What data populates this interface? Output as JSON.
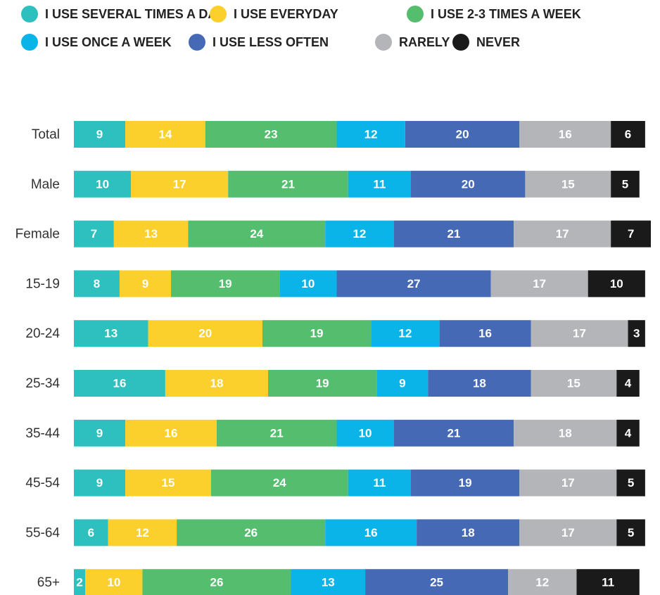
{
  "chart_data": {
    "type": "stacked_bar_horizontal",
    "categories": [
      "Total",
      "Male",
      "Female",
      "15-19",
      "20-24",
      "25-34",
      "35-44",
      "45-54",
      "55-64",
      "65+"
    ],
    "series": [
      {
        "name": "I USE SEVERAL TIMES A DAY",
        "color": "#2ebfbf",
        "values": [
          9,
          10,
          7,
          8,
          13,
          16,
          9,
          9,
          6,
          2
        ]
      },
      {
        "name": "I USE EVERYDAY",
        "color": "#fcd02c",
        "values": [
          14,
          17,
          13,
          9,
          20,
          18,
          16,
          15,
          12,
          10
        ]
      },
      {
        "name": "I USE 2-3 TIMES A WEEK",
        "color": "#55bd6e",
        "values": [
          23,
          21,
          24,
          19,
          19,
          19,
          21,
          24,
          26,
          26
        ]
      },
      {
        "name": "I USE ONCE A WEEK",
        "color": "#0ab3e8",
        "values": [
          12,
          11,
          12,
          10,
          12,
          9,
          10,
          11,
          16,
          13
        ]
      },
      {
        "name": "I USE LESS OFTEN",
        "color": "#4569b4",
        "values": [
          20,
          20,
          21,
          27,
          16,
          18,
          21,
          19,
          18,
          25
        ]
      },
      {
        "name": "RARELY",
        "color": "#b3b5b9",
        "values": [
          16,
          15,
          17,
          17,
          17,
          15,
          18,
          17,
          17,
          12
        ]
      },
      {
        "name": "NEVER",
        "color": "#1a1a1a",
        "values": [
          6,
          5,
          7,
          10,
          3,
          4,
          4,
          5,
          5,
          11
        ]
      }
    ],
    "legend": "top"
  }
}
